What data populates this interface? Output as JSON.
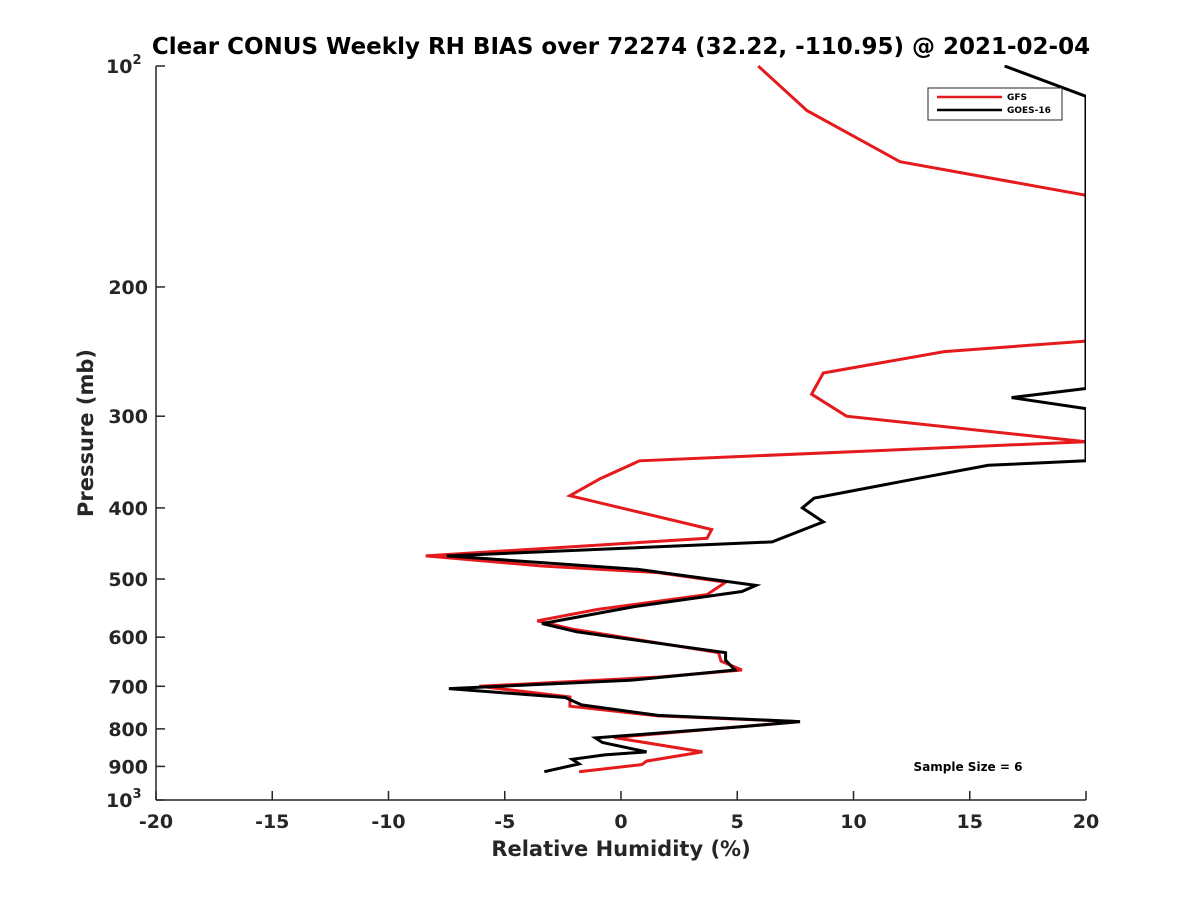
{
  "chart_data": {
    "type": "line",
    "title": "Clear CONUS Weekly RH BIAS over 72274 (32.22, -110.95) @ 2021-02-04",
    "xlabel": "Relative Humidity (%)",
    "ylabel": "Pressure (mb)",
    "xlim": [
      -20,
      20
    ],
    "ylim": [
      100,
      1000
    ],
    "y_scale": "log",
    "y_reversed": true,
    "grid": false,
    "legend_position": "top-right",
    "x_ticks": [
      -20,
      -15,
      -10,
      -5,
      0,
      5,
      10,
      15,
      20
    ],
    "x_tick_labels": [
      "-20",
      "-15",
      "-10",
      "-5",
      "0",
      "5",
      "10",
      "15",
      "20"
    ],
    "y_ticks": [
      100,
      200,
      300,
      400,
      500,
      600,
      700,
      800,
      900,
      1000
    ],
    "y_tick_labels": [
      {
        "base": "10",
        "exp": "2"
      },
      {
        "base": "200",
        "exp": ""
      },
      {
        "base": "300",
        "exp": ""
      },
      {
        "base": "400",
        "exp": ""
      },
      {
        "base": "500",
        "exp": ""
      },
      {
        "base": "600",
        "exp": ""
      },
      {
        "base": "700",
        "exp": ""
      },
      {
        "base": "800",
        "exp": ""
      },
      {
        "base": "900",
        "exp": ""
      },
      {
        "base": "10",
        "exp": "3"
      }
    ],
    "annotation": "Sample Size = 6",
    "series": [
      {
        "name": "GFS",
        "color": "#e41a1c",
        "points": [
          [
            5.9,
            100
          ],
          [
            8,
            115
          ],
          [
            12,
            135
          ],
          [
            20,
            150
          ],
          [
            20,
            237
          ],
          [
            13.9,
            245
          ],
          [
            8.7,
            262
          ],
          [
            8.2,
            280
          ],
          [
            9.7,
            300
          ],
          [
            20,
            325
          ],
          [
            0.8,
            345
          ],
          [
            -0.9,
            365
          ],
          [
            -2.2,
            385
          ],
          [
            3.9,
            428
          ],
          [
            3.7,
            440
          ],
          [
            -8.4,
            465
          ],
          [
            -3.4,
            480
          ],
          [
            1.6,
            490
          ],
          [
            4.5,
            505
          ],
          [
            3.7,
            525
          ],
          [
            -1,
            550
          ],
          [
            -3.6,
            570
          ],
          [
            -2.1,
            585
          ],
          [
            4.2,
            630
          ],
          [
            4.3,
            647
          ],
          [
            5.2,
            665
          ],
          [
            1.6,
            680
          ],
          [
            -6.1,
            700
          ],
          [
            -2.2,
            724
          ],
          [
            -2.2,
            745
          ],
          [
            1.6,
            768
          ],
          [
            7.7,
            782
          ],
          [
            -0.3,
            822
          ],
          [
            3.5,
            860
          ],
          [
            1.1,
            885
          ],
          [
            0.9,
            895
          ],
          [
            -1.8,
            915
          ]
        ]
      },
      {
        "name": "GOES-16",
        "color": "#000000",
        "points": [
          [
            16.5,
            100
          ],
          [
            20,
            110
          ],
          [
            20,
            275
          ],
          [
            16.8,
            283
          ],
          [
            20,
            293
          ],
          [
            20,
            345
          ],
          [
            15.8,
            350
          ],
          [
            12.7,
            365
          ],
          [
            8.3,
            388
          ],
          [
            7.8,
            400
          ],
          [
            8.7,
            418
          ],
          [
            6.5,
            445
          ],
          [
            -7.5,
            465
          ],
          [
            0.7,
            485
          ],
          [
            5.8,
            510
          ],
          [
            5.2,
            520
          ],
          [
            0.6,
            545
          ],
          [
            -3.4,
            575
          ],
          [
            -1.9,
            590
          ],
          [
            4.5,
            630
          ],
          [
            4.5,
            645
          ],
          [
            4.9,
            665
          ],
          [
            0.4,
            687
          ],
          [
            -7.4,
            705
          ],
          [
            -2.4,
            725
          ],
          [
            -1.7,
            742
          ],
          [
            1.6,
            767
          ],
          [
            7.7,
            782
          ],
          [
            5.1,
            795
          ],
          [
            -1.1,
            823
          ],
          [
            -0.8,
            835
          ],
          [
            1.1,
            860
          ],
          [
            -0.7,
            868
          ],
          [
            -2.1,
            880
          ],
          [
            -1.8,
            893
          ],
          [
            -3.3,
            915
          ]
        ]
      }
    ]
  }
}
